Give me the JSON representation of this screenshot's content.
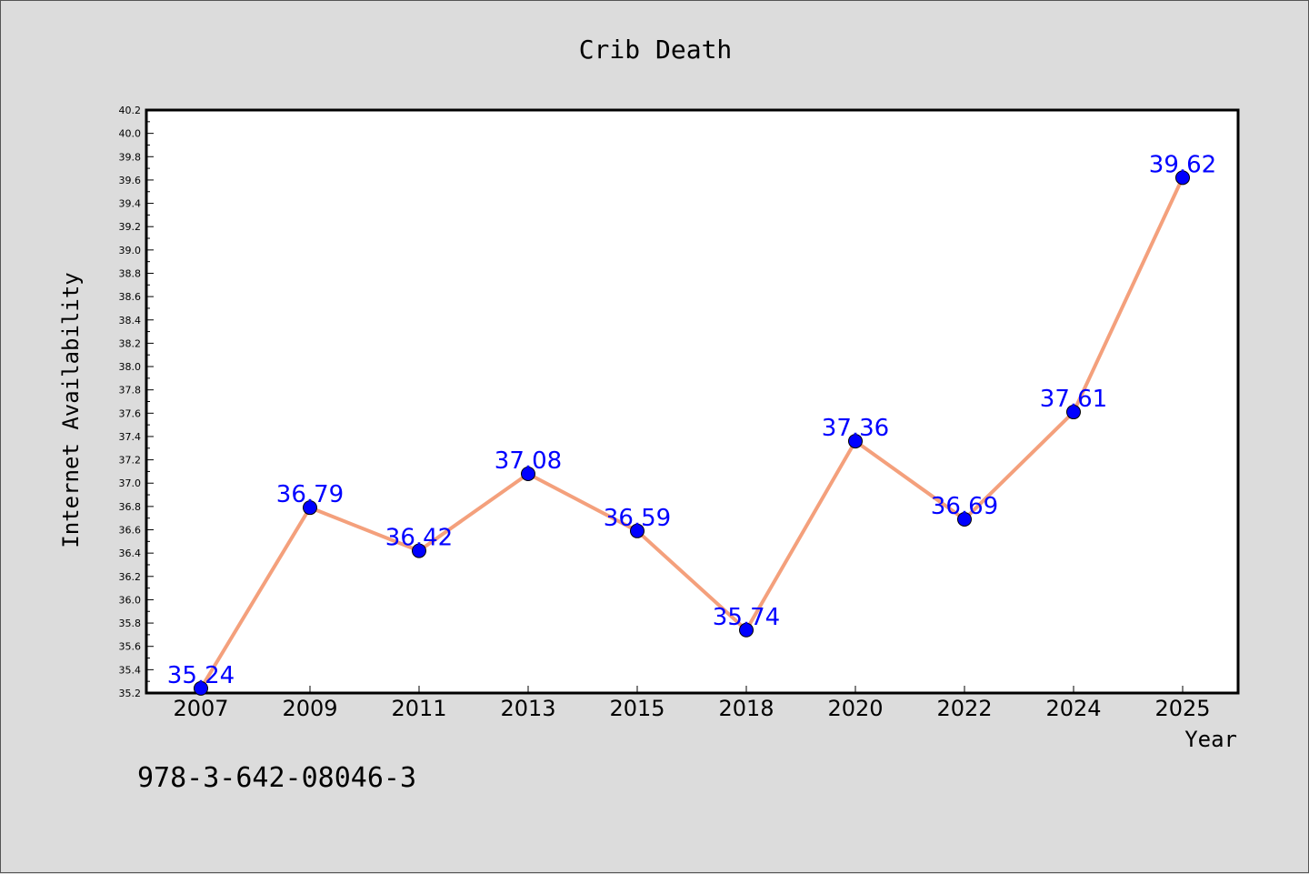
{
  "chart_data": {
    "type": "line",
    "title": "Crib Death",
    "xlabel": "Year",
    "ylabel": "Internet Availability",
    "categories": [
      "2007",
      "2009",
      "2011",
      "2013",
      "2015",
      "2018",
      "2020",
      "2022",
      "2024",
      "2025"
    ],
    "series": [
      {
        "values": [
          35.24,
          36.79,
          36.42,
          37.08,
          36.59,
          35.74,
          37.36,
          36.69,
          37.61,
          39.62
        ],
        "line_color": "#f4a07c",
        "marker_color": "#0000ff"
      }
    ],
    "data_labels": [
      "35.24",
      "36.79",
      "36.42",
      "37.08",
      "36.59",
      "35.74",
      "37.36",
      "36.69",
      "37.61",
      "39.62"
    ],
    "ylim": [
      35.2,
      40.2
    ],
    "yticks": [
      "35.2",
      "35.4",
      "35.6",
      "35.8",
      "36.0",
      "36.2",
      "36.4",
      "36.6",
      "36.8",
      "37.0",
      "37.2",
      "37.4",
      "37.6",
      "37.8",
      "38.0",
      "38.2",
      "38.4",
      "38.6",
      "38.8",
      "39.0",
      "39.2",
      "39.4",
      "39.6",
      "39.8",
      "40.0",
      "40.2"
    ],
    "grid": false,
    "legend": "none"
  },
  "footnote": "978-3-642-08046-3"
}
